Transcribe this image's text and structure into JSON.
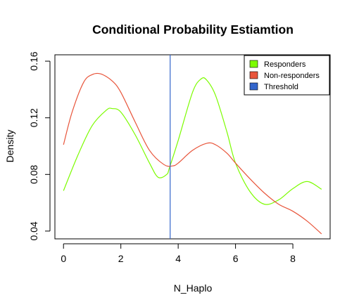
{
  "chart_data": {
    "type": "line",
    "title": "Conditional Probability Estiamtion",
    "xlabel": "N_Haplo",
    "ylabel": "Density",
    "xlim": [
      -0.3,
      9.3
    ],
    "ylim": [
      0.0345,
      0.1645
    ],
    "x_ticks": [
      0,
      2,
      4,
      6,
      8
    ],
    "x_tick_labels": [
      "0",
      "2",
      "4",
      "6",
      "8"
    ],
    "y_ticks": [
      0.04,
      0.08,
      0.12,
      0.16
    ],
    "y_tick_labels": [
      "0.04",
      "0.08",
      "0.12",
      "0.16"
    ],
    "grid": false,
    "legend": {
      "placement": "top-right",
      "entries": [
        {
          "label": "Responders",
          "color": "#7CFC00"
        },
        {
          "label": "Non-responders",
          "color": "#E8553B"
        },
        {
          "label": "Threshold",
          "color": "#3366CC"
        }
      ]
    },
    "series": [
      {
        "name": "Responders",
        "color": "#7CFC00",
        "x": [
          0,
          0.5,
          1.0,
          1.5,
          1.7,
          2.0,
          2.5,
          3.0,
          3.3,
          3.6,
          3.7,
          4.0,
          4.5,
          4.8,
          5.0,
          5.3,
          5.7,
          6.0,
          6.5,
          7.0,
          7.5,
          8.0,
          8.5,
          9.0
        ],
        "y": [
          0.0685,
          0.0935,
          0.1145,
          0.1255,
          0.1265,
          0.124,
          0.108,
          0.088,
          0.078,
          0.08,
          0.085,
          0.104,
          0.138,
          0.1475,
          0.1465,
          0.136,
          0.11,
          0.088,
          0.068,
          0.059,
          0.062,
          0.07,
          0.075,
          0.0695
        ]
      },
      {
        "name": "Non-responders",
        "color": "#E8553B",
        "x": [
          0,
          0.3,
          0.7,
          1.0,
          1.3,
          1.7,
          2.0,
          2.5,
          3.0,
          3.5,
          3.8,
          4.0,
          4.5,
          5.0,
          5.3,
          5.7,
          6.0,
          6.5,
          7.0,
          7.5,
          8.0,
          8.5,
          9.0
        ],
        "y": [
          0.101,
          0.124,
          0.145,
          0.1505,
          0.151,
          0.146,
          0.138,
          0.117,
          0.097,
          0.087,
          0.086,
          0.088,
          0.097,
          0.102,
          0.101,
          0.095,
          0.088,
          0.077,
          0.067,
          0.059,
          0.054,
          0.047,
          0.038
        ]
      }
    ],
    "threshold": {
      "name": "Threshold",
      "x": 3.72,
      "color": "#3366CC"
    }
  }
}
